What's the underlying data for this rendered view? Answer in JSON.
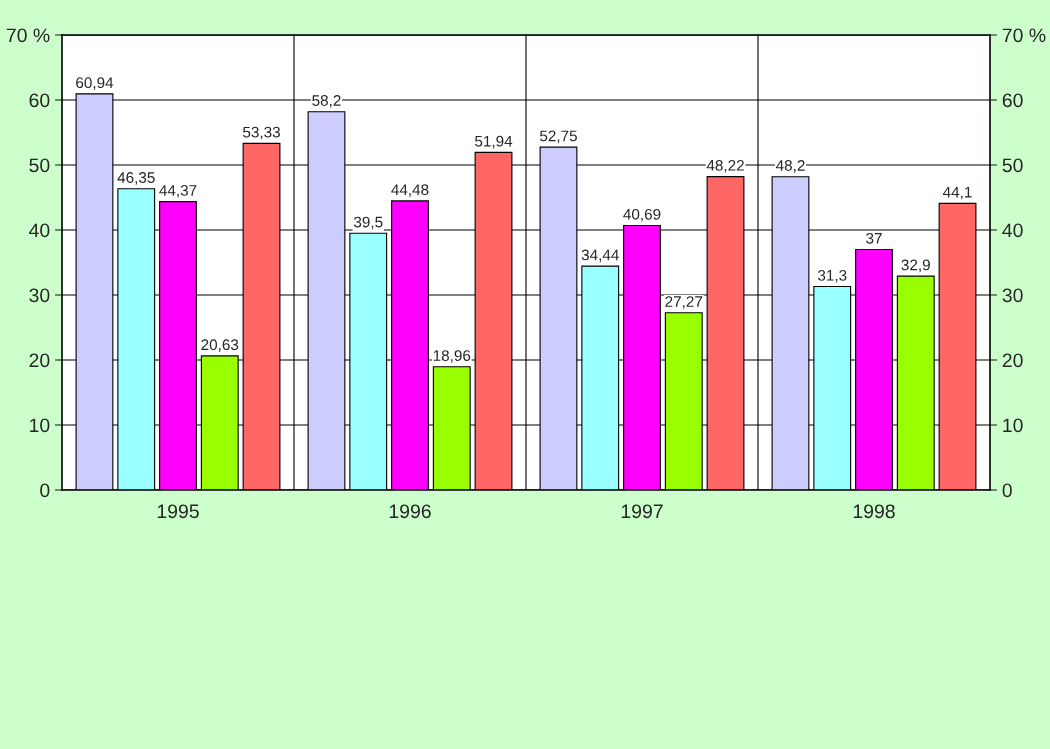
{
  "chart_data": {
    "type": "bar",
    "categories": [
      "1995",
      "1996",
      "1997",
      "1998"
    ],
    "series": [
      {
        "color": "#ccccff",
        "values": [
          60.94,
          58.2,
          52.75,
          48.2
        ],
        "value_labels": [
          "60,94",
          "58,2",
          "52,75",
          "48,2"
        ]
      },
      {
        "color": "#99ffff",
        "values": [
          46.35,
          39.5,
          34.44,
          31.3
        ],
        "value_labels": [
          "46,35",
          "39,5",
          "34,44",
          "31,3"
        ]
      },
      {
        "color": "#ff00ff",
        "values": [
          44.37,
          44.48,
          40.69,
          37
        ],
        "value_labels": [
          "44,37",
          "44,48",
          "40,69",
          "37"
        ]
      },
      {
        "color": "#99ff00",
        "values": [
          20.63,
          18.96,
          27.27,
          32.9
        ],
        "value_labels": [
          "20,63",
          "18,96",
          "27,27",
          "32,9"
        ]
      },
      {
        "color": "#ff6666",
        "values": [
          53.33,
          51.94,
          48.22,
          44.1
        ],
        "value_labels": [
          "53,33",
          "51,94",
          "48,22",
          "44,1"
        ]
      }
    ],
    "ylim": [
      0,
      70
    ],
    "yticks": [
      0,
      10,
      20,
      30,
      40,
      50,
      60,
      {
        "value": 70,
        "label": "70 %"
      }
    ],
    "y2lim": [
      0,
      70
    ],
    "y2ticks": [
      0,
      10,
      20,
      30,
      40,
      50,
      60,
      {
        "value": 70,
        "label": "70 %"
      }
    ],
    "grid": true,
    "legend": false
  }
}
